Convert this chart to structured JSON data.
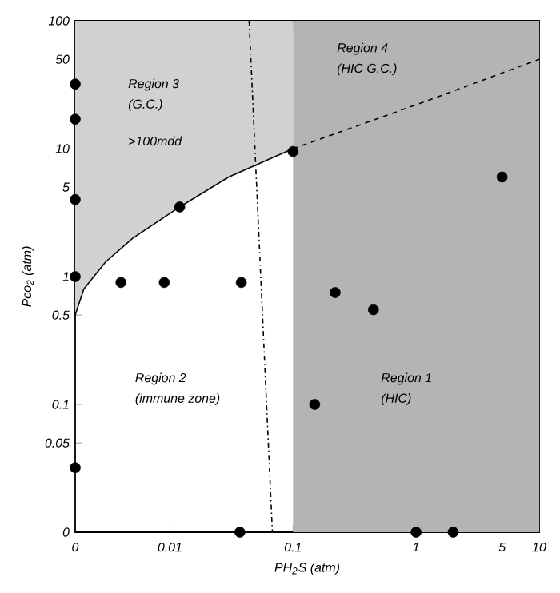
{
  "chart_data": {
    "type": "scatter",
    "xlabel": "PH$_{2}$S (atm)",
    "ylabel": "Pco$_{2}$ (atm)",
    "log": "xy",
    "xlim": [
      0.0017,
      10
    ],
    "ylim": [
      0.01,
      100
    ],
    "xticks": [
      {
        "value": 0.0017,
        "label": "0"
      },
      0.01,
      0.1,
      1,
      5,
      10
    ],
    "yticks": [
      {
        "value": 0.01,
        "label": "0"
      },
      0.05,
      0.1,
      0.5,
      1,
      5,
      10,
      50,
      100
    ],
    "bands": [
      {
        "axis": "x",
        "from": 0.1,
        "to": 10,
        "color": "#b4b4b4"
      }
    ],
    "series": [
      {
        "type": "line",
        "color": "#000000",
        "line_style": "solid",
        "x": [
          0.0017,
          0.002,
          0.003,
          0.005,
          0.012,
          0.03,
          0.1
        ],
        "values": [
          0.5,
          0.8,
          1.3,
          2,
          3.5,
          6,
          10
        ],
        "lower": [
          0.5,
          0.8,
          1.3,
          2,
          3.5,
          6,
          10
        ],
        "upper": [
          100,
          100,
          100,
          100,
          100,
          100,
          100
        ]
      },
      {
        "type": "line",
        "color": "#000000",
        "line_style": "dashed",
        "x": [
          0.1,
          1,
          10
        ],
        "values": [
          10,
          22,
          50
        ]
      },
      {
        "type": "line",
        "color": "#000000",
        "line_style": "dashdot",
        "x": [
          0.044,
          0.068
        ],
        "values": [
          100,
          0.01
        ]
      },
      {
        "color": "#000000",
        "marker": "circle",
        "x": [
          0.0017,
          0.0017,
          0.0017,
          0.0017,
          0.0017,
          0.004,
          0.009,
          0.038,
          0.012,
          0.1,
          0.22,
          0.45,
          0.15,
          5,
          0.037,
          1,
          2
        ],
        "values": [
          32,
          17,
          4,
          1,
          0.032,
          0.9,
          0.9,
          0.9,
          3.5,
          9.5,
          0.75,
          0.55,
          0.1,
          6,
          0.01,
          0.01,
          0.01
        ]
      }
    ],
    "annotations": [
      "Region 3",
      "(G.C.)",
      ">100mdd",
      "Region 4",
      "(HIC G.C.)",
      "Region 2",
      "(immune zone)",
      "Region 1",
      "(HIC)"
    ]
  }
}
